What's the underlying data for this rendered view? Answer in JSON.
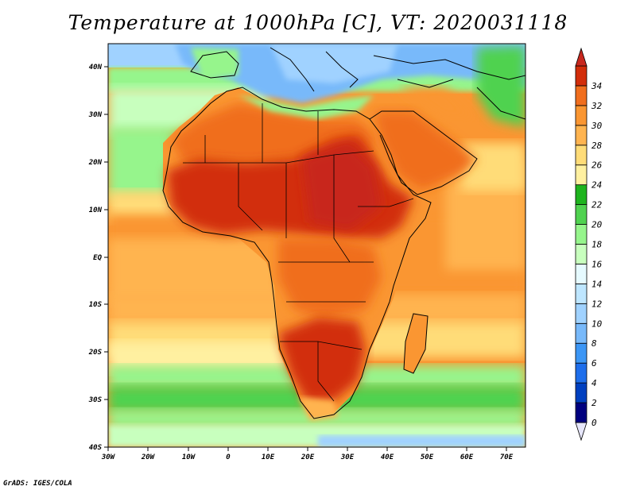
{
  "title": "Temperature at 1000hPa [C], VT: 2020031118",
  "credit": "GrADS: IGES/COLA",
  "map": {
    "lon_labels": [
      "30W",
      "20W",
      "10W",
      "0",
      "10E",
      "20E",
      "30E",
      "40E",
      "50E",
      "60E",
      "70E"
    ],
    "lat_labels": [
      "40N",
      "30N",
      "20N",
      "10N",
      "EQ",
      "10S",
      "20S",
      "30S",
      "40S"
    ]
  },
  "colorbar": {
    "levels": [
      "0",
      "2",
      "4",
      "6",
      "8",
      "10",
      "12",
      "14",
      "16",
      "18",
      "20",
      "22",
      "24",
      "26",
      "28",
      "30",
      "32",
      "34"
    ],
    "colors": [
      "#e6e6fa",
      "#00007f",
      "#0040c0",
      "#1e6eeb",
      "#3c96f5",
      "#78b9fa",
      "#a0d2ff",
      "#bee6ff",
      "#e6faff",
      "#c8ffbe",
      "#96f58c",
      "#50d250",
      "#1eb41e",
      "#fff0a0",
      "#ffdc78",
      "#ffb450",
      "#fa9632",
      "#f06e1e",
      "#d22d0a",
      "#c8281e"
    ]
  },
  "palette": {
    "ocean_cool": "#a0d2ff",
    "land_hot": "#d22d0a"
  }
}
